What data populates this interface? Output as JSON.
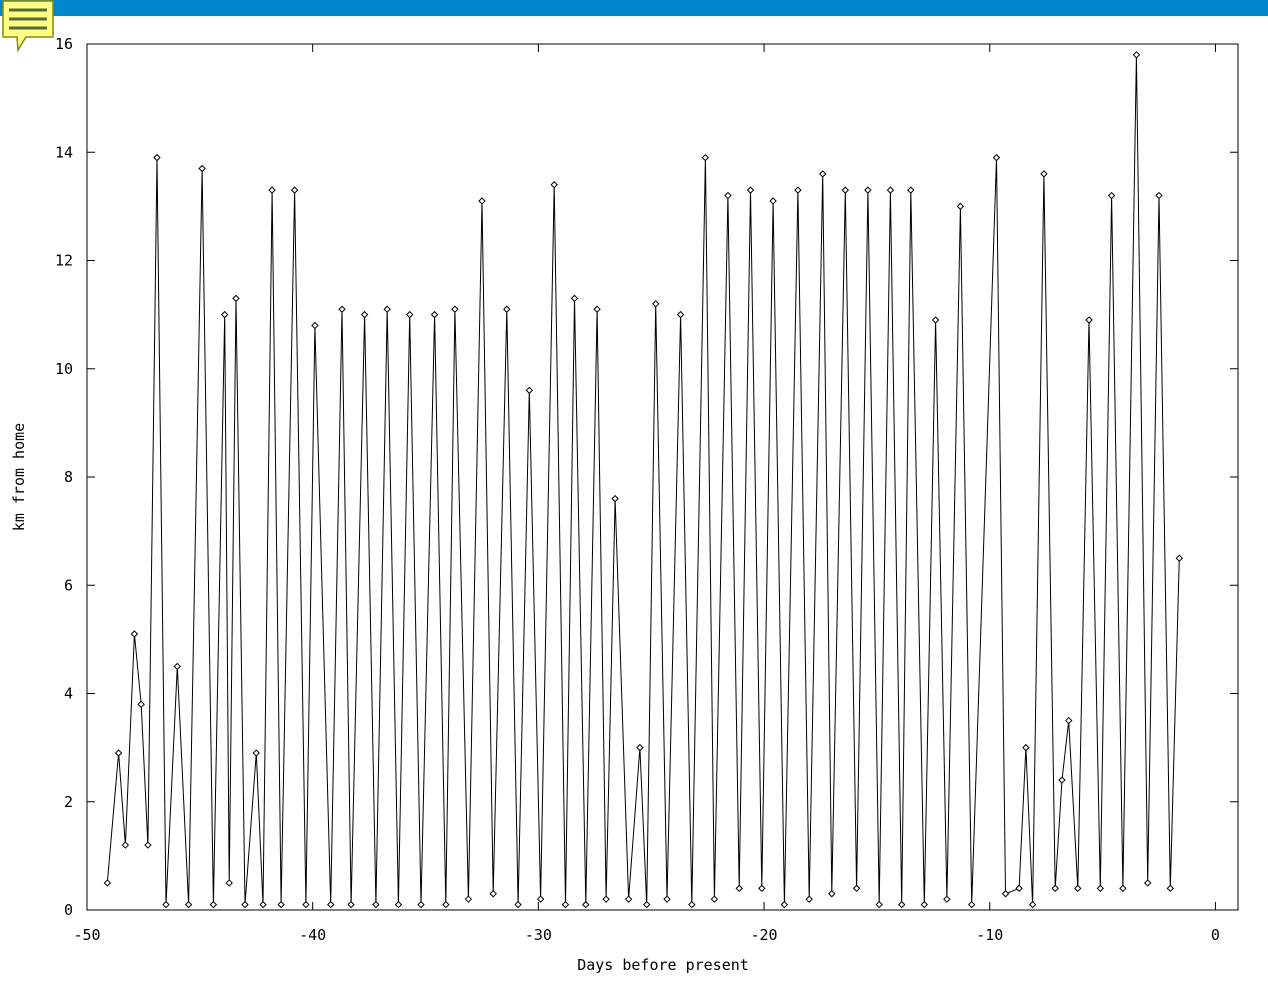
{
  "chart_data": {
    "type": "line",
    "xlabel": "Days before present",
    "ylabel": "km from home",
    "xlim": [
      -50,
      1
    ],
    "ylim": [
      0,
      16
    ],
    "xticks": [
      -50,
      -40,
      -30,
      -20,
      -10,
      0
    ],
    "yticks": [
      0,
      2,
      4,
      6,
      8,
      10,
      12,
      14,
      16
    ],
    "color": "#000000",
    "x": [
      -49.1,
      -48.6,
      -48.3,
      -47.9,
      -47.6,
      -47.3,
      -46.9,
      -46.5,
      -46.0,
      -45.5,
      -44.9,
      -44.4,
      -43.9,
      -43.7,
      -43.4,
      -43.0,
      -42.5,
      -42.2,
      -41.8,
      -41.4,
      -40.8,
      -40.3,
      -39.9,
      -39.2,
      -38.7,
      -38.3,
      -37.7,
      -37.2,
      -36.7,
      -36.2,
      -35.7,
      -35.2,
      -34.6,
      -34.1,
      -33.7,
      -33.1,
      -32.5,
      -32.0,
      -31.4,
      -30.9,
      -30.4,
      -29.9,
      -29.3,
      -28.8,
      -28.4,
      -27.9,
      -27.4,
      -27.0,
      -26.6,
      -26.0,
      -25.5,
      -25.2,
      -24.8,
      -24.3,
      -23.7,
      -23.2,
      -22.6,
      -22.2,
      -21.6,
      -21.1,
      -20.6,
      -20.1,
      -19.6,
      -19.1,
      -18.5,
      -18.0,
      -17.4,
      -17.0,
      -16.4,
      -15.9,
      -15.4,
      -14.9,
      -14.4,
      -13.9,
      -13.5,
      -12.9,
      -12.4,
      -11.9,
      -11.3,
      -10.8,
      -9.7,
      -9.3,
      -8.7,
      -8.4,
      -8.1,
      -7.6,
      -7.1,
      -6.8,
      -6.5,
      -6.1,
      -5.6,
      -5.1,
      -4.6,
      -4.1,
      -3.5,
      -3.0,
      -2.5,
      -2.0,
      -1.6
    ],
    "values": [
      0.5,
      2.9,
      1.2,
      5.1,
      3.8,
      1.2,
      13.9,
      0.1,
      4.5,
      0.1,
      13.7,
      0.1,
      11.0,
      0.5,
      11.3,
      0.1,
      2.9,
      0.1,
      13.3,
      0.1,
      13.3,
      0.1,
      10.8,
      0.1,
      11.1,
      0.1,
      11.0,
      0.1,
      11.1,
      0.1,
      11.0,
      0.1,
      11.0,
      0.1,
      11.1,
      0.2,
      13.1,
      0.3,
      11.1,
      0.1,
      9.6,
      0.2,
      13.4,
      0.1,
      11.3,
      0.1,
      11.1,
      0.2,
      7.6,
      0.2,
      3.0,
      0.1,
      11.2,
      0.2,
      11.0,
      0.1,
      13.9,
      0.2,
      13.2,
      0.4,
      13.3,
      0.4,
      13.1,
      0.1,
      13.3,
      0.2,
      13.6,
      0.3,
      13.3,
      0.4,
      13.3,
      0.1,
      13.3,
      0.1,
      13.3,
      0.1,
      10.9,
      0.2,
      13.0,
      0.1,
      13.9,
      0.3,
      0.4,
      3.0,
      0.1,
      13.6,
      0.4,
      2.4,
      3.5,
      0.4,
      10.9,
      0.4,
      13.2,
      0.4,
      15.8,
      0.5,
      13.2,
      0.4,
      6.5
    ]
  }
}
